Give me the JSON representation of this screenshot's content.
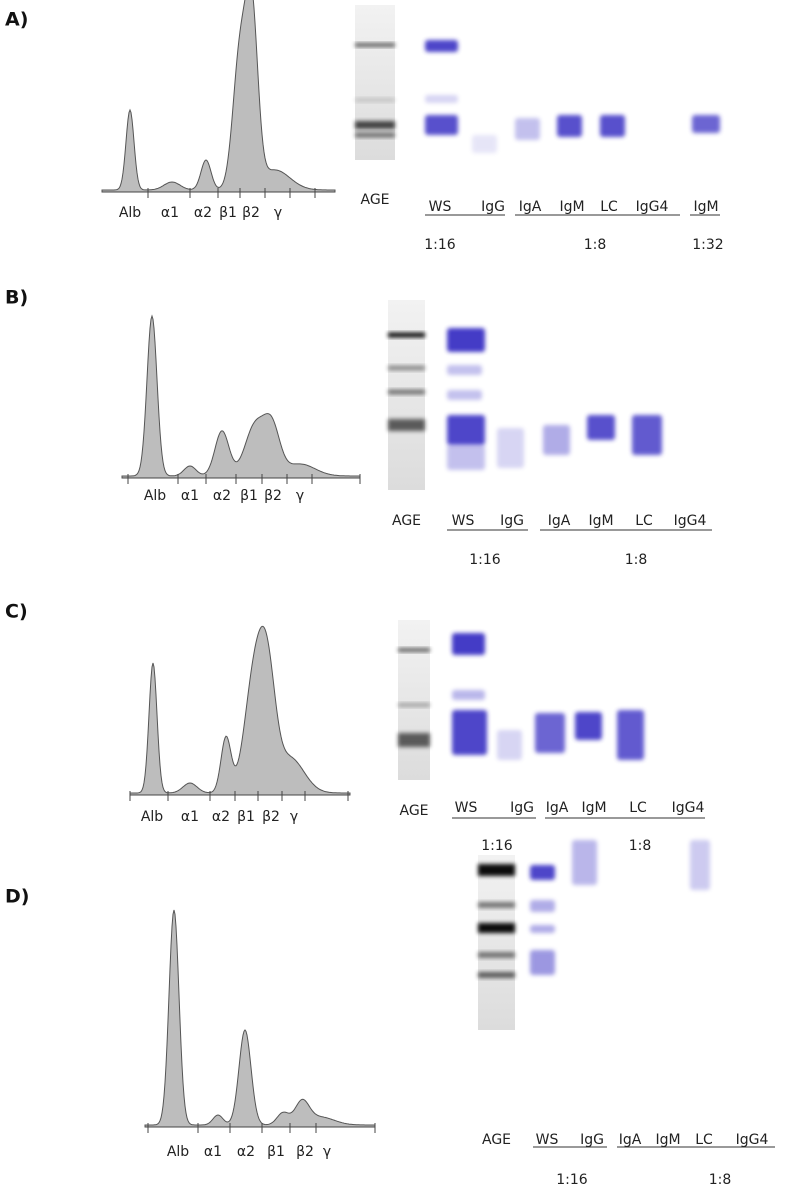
{
  "panels": [
    {
      "label": "A)",
      "fractions": [
        "Alb",
        "α1",
        "α2",
        "β1",
        "β2",
        "γ"
      ],
      "age": "AGE",
      "lanes": [
        "WS",
        "IgG",
        "IgA",
        "IgM",
        "LC",
        "IgG4",
        "IgM"
      ],
      "dilutions": [
        "1:16",
        "1:8",
        "1:32"
      ]
    },
    {
      "label": "B)",
      "fractions": [
        "Alb",
        "α1",
        "α2",
        "β1",
        "β2",
        "γ"
      ],
      "age": "AGE",
      "lanes": [
        "WS",
        "IgG",
        "IgA",
        "IgM",
        "LC",
        "IgG4"
      ],
      "dilutions": [
        "1:16",
        "1:8"
      ]
    },
    {
      "label": "C)",
      "fractions": [
        "Alb",
        "α1",
        "α2",
        "β1",
        "β2",
        "γ"
      ],
      "age": "AGE",
      "lanes": [
        "WS",
        "IgG",
        "IgA",
        "IgM",
        "LC",
        "IgG4"
      ],
      "dilutions": [
        "1:16",
        "1:8"
      ]
    },
    {
      "label": "D)",
      "fractions": [
        "Alb",
        "α1",
        "α2",
        "β1",
        "β2",
        "γ"
      ],
      "age": "AGE",
      "lanes": [
        "WS",
        "IgG",
        "IgA",
        "IgM",
        "LC",
        "IgG4"
      ],
      "dilutions": [
        "1:16",
        "1:8"
      ]
    }
  ]
}
